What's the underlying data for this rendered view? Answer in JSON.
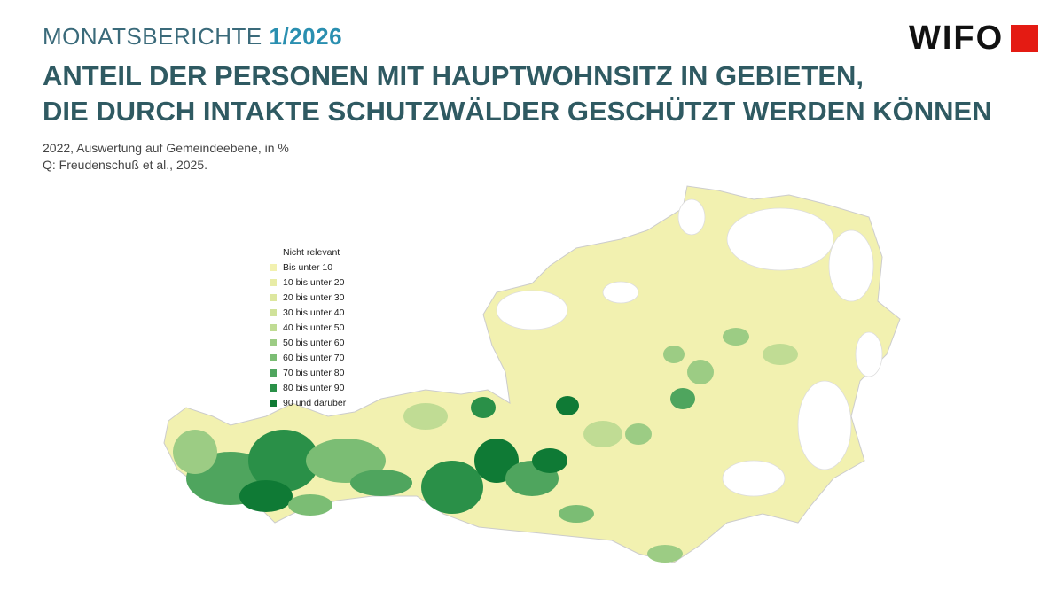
{
  "header": {
    "series": "MONATSBERICHTE",
    "issue": "1/2026",
    "logo": "WIFO",
    "title": [
      "ANTEIL DER PERSONEN MIT HAUPTWOHNSITZ IN GEBIETEN,",
      "DIE DURCH INTAKTE SCHUTZWÄLDER GESCHÜTZT WERDEN KÖNNEN"
    ],
    "subtitle": "2022, Auswertung auf Gemeindeebene, in %",
    "source": "Q: Freudenschuß et al., 2025."
  },
  "legend": [
    {
      "label": "Nicht relevant",
      "color": "#ffffff"
    },
    {
      "label": "Bis unter 10",
      "color": "#f2f1b0"
    },
    {
      "label": "10 bis unter 20",
      "color": "#e8eca6"
    },
    {
      "label": "20 bis unter 30",
      "color": "#dde79f"
    },
    {
      "label": "30 bis unter 40",
      "color": "#d0e29a"
    },
    {
      "label": "40 bis unter 50",
      "color": "#c0dc94"
    },
    {
      "label": "50 bis unter 60",
      "color": "#9ccc84"
    },
    {
      "label": "60 bis unter 70",
      "color": "#7bbd74"
    },
    {
      "label": "70 bis unter 80",
      "color": "#4fa55e"
    },
    {
      "label": "80 bis unter 90",
      "color": "#2a9048"
    },
    {
      "label": "90 und darüber",
      "color": "#0f7a35"
    }
  ]
}
